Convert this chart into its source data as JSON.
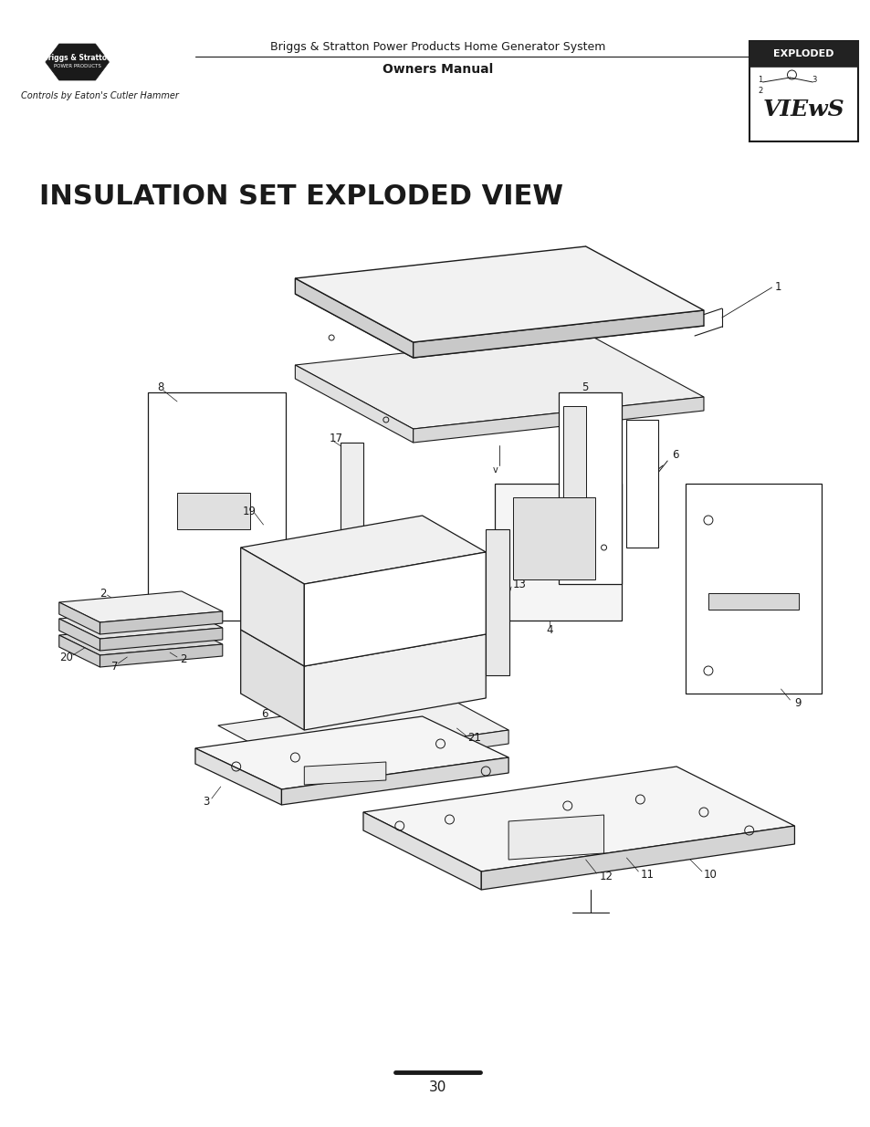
{
  "page_title": "INSULATION SET EXPLODED VIEW",
  "header_line1": "Briggs & Stratton Power Products Home Generator System",
  "header_line2": "Owners Manual",
  "subtitle_logo": "Controls by Eaton's Cutler Hammer",
  "page_number": "30",
  "background_color": "#ffffff",
  "line_color": "#1a1a1a",
  "title_fontsize": 22,
  "header_fontsize": 9.5,
  "label_fontsize": 8.5
}
